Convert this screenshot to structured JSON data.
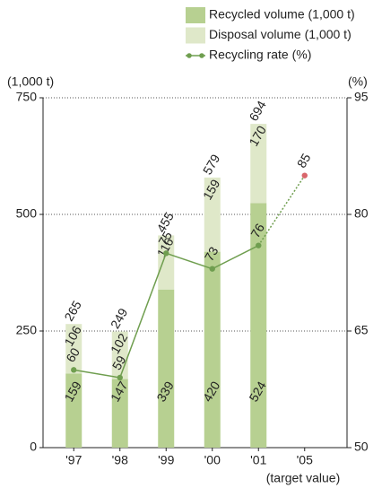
{
  "chart_data": {
    "type": "bar-line",
    "categories": [
      "'97",
      "'98",
      "'99",
      "'00",
      "'01",
      "'05"
    ],
    "x_annotation": "(target value)",
    "series": [
      {
        "name": "Recycled volume (1,000 t)",
        "color": "#b7d091",
        "values": [
          159,
          147,
          339,
          420,
          524,
          null
        ]
      },
      {
        "name": "Disposal volume (1,000 t)",
        "color": "#dfe8c9",
        "values": [
          106,
          102,
          116,
          159,
          170,
          null
        ]
      },
      {
        "name": "Recycling rate (%)",
        "color": "#6f9e4f",
        "axis": "y2",
        "values": [
          60,
          59,
          75,
          73,
          76,
          85
        ]
      }
    ],
    "totals": [
      265,
      249,
      455,
      579,
      694,
      null
    ],
    "target_color": "#d9666b",
    "ylabel": "(1,000 t)",
    "y2label": "(%)",
    "ylim": [
      0,
      750
    ],
    "yticks": [
      0,
      250,
      500,
      750
    ],
    "y2lim": [
      50,
      95
    ],
    "y2ticks": [
      50,
      65,
      80,
      95
    ],
    "grid": true
  }
}
